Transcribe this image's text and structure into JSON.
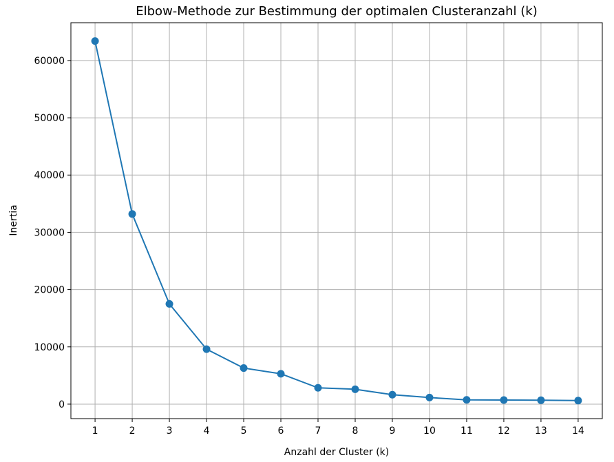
{
  "chart_data": {
    "type": "line",
    "title": "Elbow-Methode zur Bestimmung der optimalen Clusteranzahl (k)",
    "xlabel": "Anzahl der Cluster (k)",
    "ylabel": "Inertia",
    "x": [
      1,
      2,
      3,
      4,
      5,
      6,
      7,
      8,
      9,
      10,
      11,
      12,
      13,
      14
    ],
    "series": [
      {
        "values": [
          63400,
          33200,
          17500,
          9600,
          6300,
          5300,
          2850,
          2600,
          1650,
          1150,
          750,
          720,
          680,
          620
        ],
        "color": "#1f77b4",
        "marker": "circle"
      }
    ],
    "xticks": [
      "1",
      "2",
      "3",
      "4",
      "5",
      "6",
      "7",
      "8",
      "9",
      "10",
      "11",
      "12",
      "13",
      "14"
    ],
    "yticks": [
      0,
      10000,
      20000,
      30000,
      40000,
      50000,
      60000
    ],
    "ytick_labels": [
      "0",
      "10000",
      "20000",
      "30000",
      "40000",
      "50000",
      "60000"
    ],
    "xlim": [
      0.35,
      14.65
    ],
    "ylim": [
      -2530,
      66600
    ],
    "grid": true,
    "legend": "none"
  }
}
